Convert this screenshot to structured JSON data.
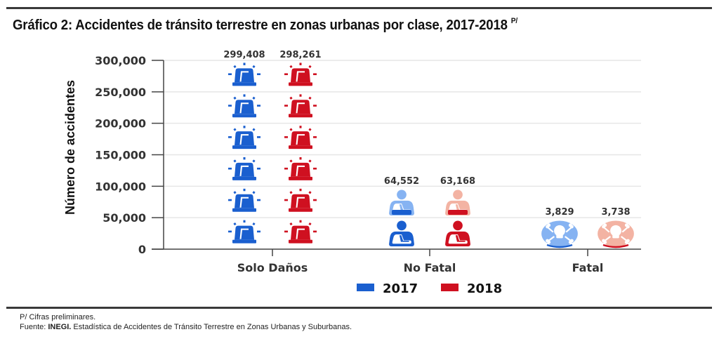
{
  "title": {
    "text": "Gráfico 2: Accidentes de tránsito terrestre en zonas urbanas por clase, 2017-2018",
    "superscript": "P/"
  },
  "notes": {
    "preliminary": "P/ Cifras preliminares.",
    "source_prefix": "Fuente: ",
    "source_org": "INEGI.",
    "source_text": " Estadística de Accidentes de Tránsito Terrestre en Zonas Urbanas y Suburbanas."
  },
  "chart_data": {
    "type": "bar",
    "subtype": "pictogram",
    "title": "Gráfico 2: Accidentes de tránsito terrestre en zonas urbanas por clase, 2017-2018 P/",
    "xlabel": "",
    "ylabel": "Número de accidentes",
    "ylim": [
      0,
      300000
    ],
    "yticks": [
      0,
      50000,
      100000,
      150000,
      200000,
      250000,
      300000
    ],
    "ytick_labels": [
      "0",
      "50,000",
      "100,000",
      "150,000",
      "200,000",
      "250,000",
      "300,000"
    ],
    "grid": true,
    "legend_position": "bottom-center",
    "categories": [
      "Solo Daños",
      "No Fatal",
      "Fatal"
    ],
    "category_icons": [
      "siren-icon",
      "injured-person-icon",
      "skull-crossbones-icon"
    ],
    "series": [
      {
        "name": "2017",
        "color": "#1a5fcf",
        "light_color": "#86b3f2",
        "values": [
          299408,
          64552,
          3829
        ],
        "labels": [
          "299,408",
          "64,552",
          "3,829"
        ]
      },
      {
        "name": "2018",
        "color": "#cf1020",
        "light_color": "#f3b3a3",
        "values": [
          298261,
          63168,
          3738
        ],
        "labels": [
          "298,261",
          "63,168",
          "3,738"
        ]
      }
    ]
  }
}
